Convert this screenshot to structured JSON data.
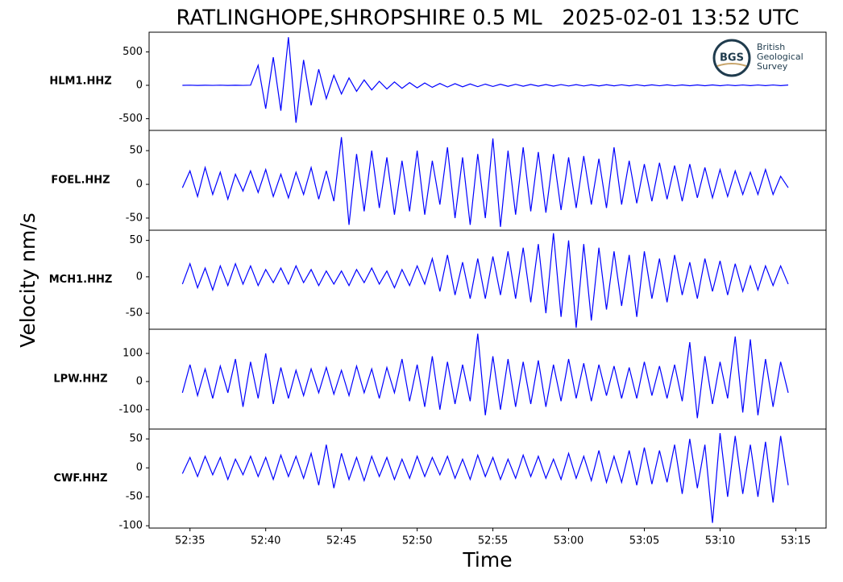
{
  "title": "RATLINGHOPE,SHROPSHIRE 0.5 ML   2025-02-01 13:52 UTC",
  "xlabel": "Time",
  "ylabel": "Velocity nm/s",
  "logo": {
    "initials": "BGS",
    "lines": [
      "British",
      "Geological",
      "Survey"
    ]
  },
  "chart_data": [
    {
      "type": "line",
      "ylabel": "HLM1.HHZ",
      "x": [
        3154.5,
        3155,
        3155.5,
        3156,
        3156.5,
        3157,
        3157.5,
        3158,
        3158.5,
        3159,
        3159.5,
        3160,
        3160.5,
        3161,
        3161.5,
        3162,
        3162.5,
        3163,
        3163.5,
        3164,
        3164.5,
        3165,
        3165.5,
        3166,
        3166.5,
        3167,
        3167.5,
        3168,
        3168.5,
        3169,
        3169.5,
        3170,
        3170.5,
        3171,
        3171.5,
        3172,
        3172.5,
        3173,
        3173.5,
        3174,
        3174.5,
        3175,
        3175.5,
        3176,
        3176.5,
        3177,
        3177.5,
        3178,
        3178.5,
        3179,
        3179.5,
        3180,
        3180.5,
        3181,
        3181.5,
        3182,
        3182.5,
        3183,
        3183.5,
        3184,
        3184.5,
        3185,
        3185.5,
        3186,
        3186.5,
        3187,
        3187.5,
        3188,
        3188.5,
        3189,
        3189.5,
        3190,
        3190.5,
        3191,
        3191.5,
        3192,
        3192.5,
        3193,
        3193.5,
        3194,
        3194.5
      ],
      "series": [
        {
          "color": "#0000ff",
          "values": [
            0,
            2,
            -2,
            1,
            -1,
            2,
            -2,
            1,
            -1,
            2,
            300,
            -350,
            420,
            -380,
            720,
            -560,
            380,
            -300,
            240,
            -200,
            150,
            -130,
            110,
            -90,
            80,
            -70,
            60,
            -55,
            50,
            -45,
            40,
            -38,
            35,
            -30,
            28,
            -26,
            25,
            -22,
            20,
            -20,
            18,
            -17,
            16,
            -15,
            15,
            -14,
            13,
            -12,
            12,
            -12,
            11,
            -10,
            10,
            -10,
            9,
            -9,
            9,
            -8,
            8,
            -8,
            8,
            -8,
            7,
            -7,
            7,
            -7,
            6,
            -6,
            6,
            -6,
            6,
            -6,
            5,
            -5,
            5,
            -5,
            5,
            -5,
            5,
            -5,
            4
          ]
        }
      ],
      "xlim": [
        3152.3,
        3197.0
      ],
      "ylim": [
        -675,
        795
      ],
      "yticks": [
        -500,
        0,
        500
      ]
    },
    {
      "type": "line",
      "ylabel": "FOEL.HHZ",
      "x": [
        3154.5,
        3155,
        3155.5,
        3156,
        3156.5,
        3157,
        3157.5,
        3158,
        3158.5,
        3159,
        3159.5,
        3160,
        3160.5,
        3161,
        3161.5,
        3162,
        3162.5,
        3163,
        3163.5,
        3164,
        3164.5,
        3165,
        3165.5,
        3166,
        3166.5,
        3167,
        3167.5,
        3168,
        3168.5,
        3169,
        3169.5,
        3170,
        3170.5,
        3171,
        3171.5,
        3172,
        3172.5,
        3173,
        3173.5,
        3174,
        3174.5,
        3175,
        3175.5,
        3176,
        3176.5,
        3177,
        3177.5,
        3178,
        3178.5,
        3179,
        3179.5,
        3180,
        3180.5,
        3181,
        3181.5,
        3182,
        3182.5,
        3183,
        3183.5,
        3184,
        3184.5,
        3185,
        3185.5,
        3186,
        3186.5,
        3187,
        3187.5,
        3188,
        3188.5,
        3189,
        3189.5,
        3190,
        3190.5,
        3191,
        3191.5,
        3192,
        3192.5,
        3193,
        3193.5,
        3194,
        3194.5
      ],
      "series": [
        {
          "color": "#0000ff",
          "values": [
            -5,
            20,
            -18,
            25,
            -15,
            18,
            -22,
            15,
            -10,
            20,
            -12,
            22,
            -18,
            15,
            -20,
            18,
            -15,
            25,
            -22,
            20,
            -25,
            70,
            -60,
            45,
            -40,
            50,
            -35,
            40,
            -45,
            35,
            -40,
            50,
            -45,
            35,
            -30,
            55,
            -50,
            40,
            -60,
            45,
            -50,
            68,
            -63,
            50,
            -45,
            55,
            -40,
            48,
            -42,
            45,
            -38,
            40,
            -35,
            42,
            -30,
            38,
            -35,
            55,
            -30,
            35,
            -28,
            30,
            -25,
            32,
            -22,
            28,
            -25,
            30,
            -20,
            25,
            -20,
            22,
            -18,
            20,
            -15,
            18,
            -15,
            22,
            -15,
            12,
            -5
          ]
        }
      ],
      "xlim": [
        3152.3,
        3197.0
      ],
      "ylim": [
        -68,
        80
      ],
      "yticks": [
        -50,
        0,
        50
      ]
    },
    {
      "type": "line",
      "ylabel": "MCH1.HHZ",
      "x": [
        3154.5,
        3155,
        3155.5,
        3156,
        3156.5,
        3157,
        3157.5,
        3158,
        3158.5,
        3159,
        3159.5,
        3160,
        3160.5,
        3161,
        3161.5,
        3162,
        3162.5,
        3163,
        3163.5,
        3164,
        3164.5,
        3165,
        3165.5,
        3166,
        3166.5,
        3167,
        3167.5,
        3168,
        3168.5,
        3169,
        3169.5,
        3170,
        3170.5,
        3171,
        3171.5,
        3172,
        3172.5,
        3173,
        3173.5,
        3174,
        3174.5,
        3175,
        3175.5,
        3176,
        3176.5,
        3177,
        3177.5,
        3178,
        3178.5,
        3179,
        3179.5,
        3180,
        3180.5,
        3181,
        3181.5,
        3182,
        3182.5,
        3183,
        3183.5,
        3184,
        3184.5,
        3185,
        3185.5,
        3186,
        3186.5,
        3187,
        3187.5,
        3188,
        3188.5,
        3189,
        3189.5,
        3190,
        3190.5,
        3191,
        3191.5,
        3192,
        3192.5,
        3193,
        3193.5,
        3194,
        3194.5
      ],
      "series": [
        {
          "color": "#0000ff",
          "values": [
            -10,
            18,
            -15,
            12,
            -18,
            15,
            -12,
            18,
            -10,
            15,
            -12,
            10,
            -8,
            12,
            -10,
            15,
            -8,
            10,
            -12,
            8,
            -10,
            8,
            -12,
            10,
            -8,
            12,
            -10,
            8,
            -15,
            10,
            -12,
            15,
            -10,
            25,
            -20,
            30,
            -25,
            20,
            -30,
            25,
            -30,
            28,
            -25,
            35,
            -30,
            40,
            -35,
            45,
            -50,
            60,
            -55,
            50,
            -70,
            45,
            -60,
            40,
            -45,
            35,
            -40,
            30,
            -55,
            35,
            -30,
            25,
            -35,
            30,
            -25,
            20,
            -30,
            25,
            -20,
            22,
            -25,
            18,
            -20,
            15,
            -18,
            15,
            -12,
            15,
            -10
          ]
        }
      ],
      "xlim": [
        3152.3,
        3197.0
      ],
      "ylim": [
        -72,
        64
      ],
      "yticks": [
        -50,
        0,
        50
      ]
    },
    {
      "type": "line",
      "ylabel": "LPW.HHZ",
      "x": [
        3154.5,
        3155,
        3155.5,
        3156,
        3156.5,
        3157,
        3157.5,
        3158,
        3158.5,
        3159,
        3159.5,
        3160,
        3160.5,
        3161,
        3161.5,
        3162,
        3162.5,
        3163,
        3163.5,
        3164,
        3164.5,
        3165,
        3165.5,
        3166,
        3166.5,
        3167,
        3167.5,
        3168,
        3168.5,
        3169,
        3169.5,
        3170,
        3170.5,
        3171,
        3171.5,
        3172,
        3172.5,
        3173,
        3173.5,
        3174,
        3174.5,
        3175,
        3175.5,
        3176,
        3176.5,
        3177,
        3177.5,
        3178,
        3178.5,
        3179,
        3179.5,
        3180,
        3180.5,
        3181,
        3181.5,
        3182,
        3182.5,
        3183,
        3183.5,
        3184,
        3184.5,
        3185,
        3185.5,
        3186,
        3186.5,
        3187,
        3187.5,
        3188,
        3188.5,
        3189,
        3189.5,
        3190,
        3190.5,
        3191,
        3191.5,
        3192,
        3192.5,
        3193,
        3193.5,
        3194,
        3194.5
      ],
      "series": [
        {
          "color": "#0000ff",
          "values": [
            -40,
            60,
            -50,
            45,
            -60,
            55,
            -40,
            80,
            -90,
            70,
            -60,
            100,
            -80,
            50,
            -60,
            40,
            -50,
            45,
            -40,
            50,
            -45,
            40,
            -50,
            55,
            -40,
            45,
            -60,
            50,
            -40,
            80,
            -70,
            60,
            -90,
            90,
            -100,
            70,
            -80,
            60,
            -70,
            170,
            -120,
            90,
            -100,
            80,
            -90,
            70,
            -80,
            75,
            -90,
            60,
            -70,
            80,
            -60,
            65,
            -70,
            60,
            -50,
            55,
            -60,
            50,
            -60,
            70,
            -50,
            55,
            -60,
            60,
            -70,
            140,
            -130,
            90,
            -80,
            70,
            -60,
            160,
            -110,
            150,
            -120,
            80,
            -90,
            70,
            -40
          ]
        }
      ],
      "xlim": [
        3152.3,
        3197.0
      ],
      "ylim": [
        -169,
        186
      ],
      "yticks": [
        -100,
        0,
        100
      ]
    },
    {
      "type": "line",
      "ylabel": "CWF.HHZ",
      "x": [
        3154.5,
        3155,
        3155.5,
        3156,
        3156.5,
        3157,
        3157.5,
        3158,
        3158.5,
        3159,
        3159.5,
        3160,
        3160.5,
        3161,
        3161.5,
        3162,
        3162.5,
        3163,
        3163.5,
        3164,
        3164.5,
        3165,
        3165.5,
        3166,
        3166.5,
        3167,
        3167.5,
        3168,
        3168.5,
        3169,
        3169.5,
        3170,
        3170.5,
        3171,
        3171.5,
        3172,
        3172.5,
        3173,
        3173.5,
        3174,
        3174.5,
        3175,
        3175.5,
        3176,
        3176.5,
        3177,
        3177.5,
        3178,
        3178.5,
        3179,
        3179.5,
        3180,
        3180.5,
        3181,
        3181.5,
        3182,
        3182.5,
        3183,
        3183.5,
        3184,
        3184.5,
        3185,
        3185.5,
        3186,
        3186.5,
        3187,
        3187.5,
        3188,
        3188.5,
        3189,
        3189.5,
        3190,
        3190.5,
        3191,
        3191.5,
        3192,
        3192.5,
        3193,
        3193.5,
        3194,
        3194.5
      ],
      "series": [
        {
          "color": "#0000ff",
          "values": [
            -10,
            18,
            -15,
            20,
            -12,
            18,
            -20,
            15,
            -12,
            20,
            -15,
            18,
            -20,
            22,
            -15,
            20,
            -18,
            25,
            -30,
            40,
            -35,
            25,
            -20,
            18,
            -22,
            20,
            -15,
            18,
            -20,
            15,
            -18,
            20,
            -15,
            18,
            -12,
            20,
            -18,
            15,
            -20,
            22,
            -15,
            18,
            -20,
            15,
            -18,
            22,
            -15,
            20,
            -18,
            15,
            -20,
            25,
            -18,
            20,
            -22,
            30,
            -25,
            20,
            -25,
            30,
            -30,
            35,
            -28,
            30,
            -25,
            40,
            -45,
            50,
            -35,
            40,
            -95,
            60,
            -50,
            55,
            -45,
            40,
            -50,
            45,
            -60,
            55,
            -30
          ]
        }
      ],
      "xlim": [
        3152.3,
        3197.0
      ],
      "ylim": [
        -104,
        67
      ],
      "yticks": [
        -100,
        -50,
        0,
        50
      ],
      "xticks": [
        {
          "value": 3155,
          "label": "52:35"
        },
        {
          "value": 3160,
          "label": "52:40"
        },
        {
          "value": 3165,
          "label": "52:45"
        },
        {
          "value": 3170,
          "label": "52:50"
        },
        {
          "value": 3175,
          "label": "52:55"
        },
        {
          "value": 3180,
          "label": "53:00"
        },
        {
          "value": 3185,
          "label": "53:05"
        },
        {
          "value": 3190,
          "label": "53:10"
        },
        {
          "value": 3195,
          "label": "53:15"
        }
      ]
    }
  ]
}
